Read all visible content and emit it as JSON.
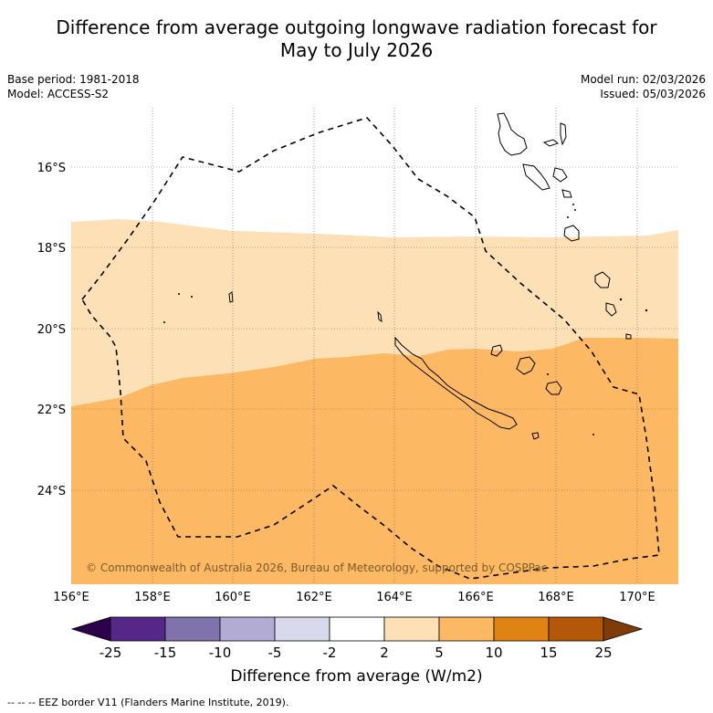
{
  "title": "Difference from average outgoing longwave radiation forecast for May to July 2026",
  "title_lines": [
    "Difference from average outgoing longwave radiation forecast for",
    "May to July 2026"
  ],
  "base_period": "Base period: 1981-2018",
  "model": "Model: ACCESS-S2",
  "model_run": "Model run: 02/03/2026",
  "issued": "Issued: 05/03/2026",
  "credit": "© Commonwealth of Australia 2026, Bureau of Meteorology, supported by COSPPac",
  "lat_labels": [
    "16°S",
    "18°S",
    "20°S",
    "22°S",
    "24°S"
  ],
  "lon_labels": [
    "156°E",
    "158°E",
    "160°E",
    "162°E",
    "164°E",
    "166°E",
    "168°E",
    "170°E"
  ],
  "colorbar": {
    "title": "Difference from average (W/m2)",
    "ticks": [
      "-25",
      "-15",
      "-10",
      "-5",
      "-2",
      "2",
      "5",
      "10",
      "15",
      "25"
    ],
    "colors": [
      "#2d004b",
      "#542788",
      "#8073ac",
      "#b2abd2",
      "#d8daeb",
      "#ffffff",
      "#fee0b6",
      "#fdb863",
      "#e08214",
      "#b35806",
      "#7f3b08"
    ]
  },
  "legend_note": "-- -- -- EEZ border V11 (Flanders Marine Institute, 2019).",
  "colors": {
    "band_2_5": "#fee0b6",
    "band_5_10": "#fdb863",
    "credit_text": "#7a5c2e"
  }
}
